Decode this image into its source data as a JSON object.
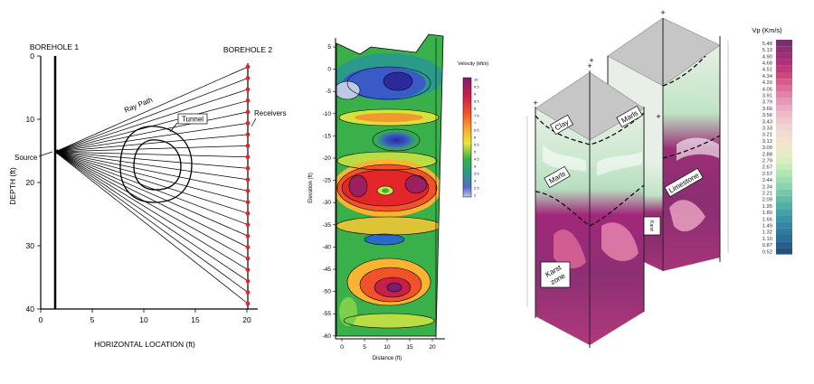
{
  "panel1": {
    "borehole1_label": "BOREHOLE 1",
    "borehole2_label": "BOREHOLE 2",
    "ray_path_label": "Ray Path",
    "tunnel_label": "Tunnel",
    "receivers_label": "Receivers",
    "source_label": "Source",
    "xlabel": "HORIZONTAL LOCATION (ft)",
    "ylabel": "DEPTH (ft)",
    "x_ticks": [
      "0",
      "5",
      "10",
      "15",
      "20"
    ],
    "y_ticks": [
      "0",
      "10",
      "20",
      "30",
      "40"
    ],
    "receiver_color": "#e0262a"
  },
  "panel2": {
    "xlabel": "Distance (ft)",
    "ylabel": "Elevation (ft)",
    "colorbar_title": "Velocity (kft/s)",
    "colorbar_ticks": [
      "10",
      "9.5",
      "9",
      "8.5",
      "8",
      "7.5",
      "7",
      "6.5",
      "6",
      "5.5",
      "5",
      "4.5",
      "4",
      "3.5",
      "3",
      "2.5",
      "2"
    ],
    "x_ticks": [
      "0",
      "5",
      "10",
      "15",
      "20"
    ],
    "y_ticks": [
      "5",
      "0",
      "-5",
      "-10",
      "-15",
      "-20",
      "-25",
      "-30",
      "-35",
      "-40",
      "-45",
      "-50",
      "-55",
      "-60"
    ]
  },
  "panel3": {
    "legend_title": "Vp (Km/s)",
    "legend_values": [
      "5.48",
      "5.13",
      "4.90",
      "4.68",
      "4.51",
      "4.34",
      "4.20",
      "4.05",
      "3.91",
      "3.79",
      "3.66",
      "3.56",
      "3.43",
      "3.33",
      "3.21",
      "3.12",
      "3.00",
      "2.88",
      "2.79",
      "2.67",
      "2.57",
      "2.44",
      "2.34",
      "2.21",
      "2.09",
      "1.95",
      "1.80",
      "1.66",
      "1.49",
      "1.32",
      "1.10",
      "0.87",
      "0.52"
    ],
    "labels": {
      "clay": "Clay",
      "marls_left": "Marls",
      "marls_right": "Marls",
      "limestone": "Limestone",
      "karst_small": "Karst",
      "karst_zone_1": "Karst",
      "karst_zone_2": "zone"
    }
  },
  "colors": {
    "velocity_scale": [
      "#7a1f6e",
      "#a3207a",
      "#c81e4a",
      "#e3262a",
      "#f2522a",
      "#f7862c",
      "#f9b532",
      "#f7e03a",
      "#c9e244",
      "#7bcf4a",
      "#3ab04a",
      "#2a9a8a",
      "#3a86c8",
      "#5a68c8",
      "#8a8ad0",
      "#c0c8e8"
    ],
    "vp_scale": [
      "#7a2e6e",
      "#8d2f74",
      "#9c2f76",
      "#ad3176",
      "#be3a78",
      "#cc4680",
      "#d65a8a",
      "#de6e98",
      "#e483a8",
      "#e898b6",
      "#eaaac0",
      "#ecbcc8",
      "#eec8cc",
      "#f0d4d0",
      "#f2dcd0",
      "#f0e2cc",
      "#eee8c8",
      "#e6ecc4",
      "#d8eebe",
      "#c6ecba",
      "#b2e6b6",
      "#9edeb2",
      "#8ad4ae",
      "#76c8aa",
      "#62bca6",
      "#52b0a6",
      "#44a2a6",
      "#3a94a6",
      "#3486a4",
      "#307a9e",
      "#2c6e96",
      "#285e8c",
      "#245080"
    ]
  }
}
